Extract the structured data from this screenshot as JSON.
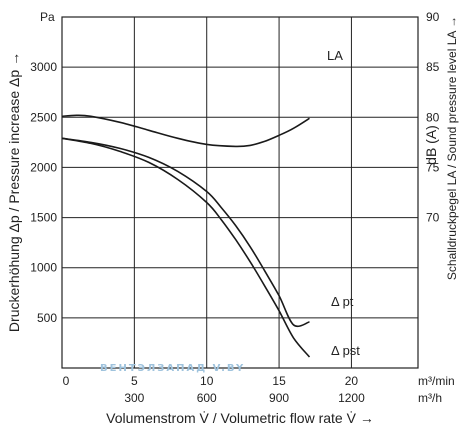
{
  "chart_data": {
    "type": "line",
    "xlabel": "Volumenstrom V̇ / Volumetric flow rate V̇ →",
    "ylabel_left": "Druckerhöhung Δp / Pressure increase Δp →",
    "ylabel_right": "Schalldruckpegel LA / Sound pressure level LA →",
    "ylabel_right_unit_label": "dB (A)",
    "y_unit": "Pa",
    "x_unit_primary": "m³/min",
    "x_unit_secondary": "m³/h",
    "xlim": [
      0,
      24.6
    ],
    "ylim_left": [
      0,
      3500
    ],
    "ylim_right": [
      55,
      90
    ],
    "grid": true,
    "x_ticks_primary": [
      0,
      5,
      10,
      15,
      20
    ],
    "x_ticks_secondary_labels": [
      "300",
      "600",
      "900",
      "1200"
    ],
    "x_ticks_secondary_positions": [
      5,
      10,
      15,
      20
    ],
    "y_ticks_left": [
      500,
      1000,
      1500,
      2000,
      2500,
      3000
    ],
    "y_ticks_left_labels": [
      "500",
      "1000",
      "1500",
      "2000",
      "2500",
      "3000"
    ],
    "y_ticks_right": [
      70,
      75,
      80,
      85,
      90
    ],
    "y_ticks_right_labels": [
      "70",
      "75",
      "80",
      "85",
      "90"
    ],
    "series": [
      {
        "name": "Δ pt",
        "axis": "left",
        "x": [
          0,
          2,
          4,
          6,
          8,
          10,
          11,
          12,
          13,
          14,
          15,
          16,
          17.1
        ],
        "y": [
          2290,
          2250,
          2190,
          2100,
          1960,
          1760,
          1600,
          1420,
          1210,
          970,
          720,
          430,
          460
        ]
      },
      {
        "name": "Δ pst",
        "axis": "left",
        "x": [
          0,
          2,
          4,
          6,
          8,
          10,
          11,
          12,
          13,
          14,
          15,
          16,
          17.1
        ],
        "y": [
          2290,
          2240,
          2160,
          2050,
          1880,
          1650,
          1480,
          1280,
          1060,
          820,
          570,
          300,
          110
        ]
      },
      {
        "name": "LA",
        "axis": "right",
        "x": [
          0,
          1,
          2,
          4,
          6,
          8,
          10,
          12,
          13,
          14,
          15,
          16,
          17.1
        ],
        "y": [
          80.1,
          80.2,
          80.1,
          79.5,
          78.7,
          77.9,
          77.3,
          77.1,
          77.2,
          77.6,
          78.2,
          78.9,
          79.9
        ]
      }
    ],
    "series_labels": [
      "LA",
      "Δ pt",
      "Δ pst"
    ]
  },
  "watermark": "ВЕНТЭЛЗАПАД   V.BY"
}
